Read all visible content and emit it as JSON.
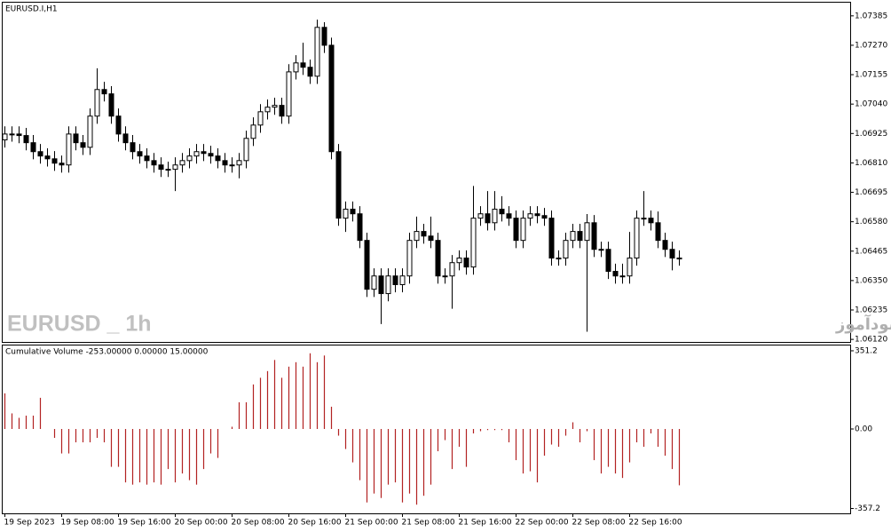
{
  "chart_data": [
    {
      "type": "candlestick",
      "title": "EURUSD.I,H1",
      "annotations": [
        "EURUSD _ 1h",
        "انتشار در سایت سودآموز"
      ],
      "categories": [
        "19 Sep 2023",
        null,
        null,
        null,
        null,
        null,
        null,
        null,
        "19 Sep 08:00",
        null,
        null,
        null,
        null,
        null,
        null,
        null,
        "19 Sep 16:00",
        null,
        null,
        null,
        null,
        null,
        null,
        null,
        "20 Sep 00:00",
        null,
        null,
        null,
        null,
        null,
        null,
        null,
        "20 Sep 08:00",
        null,
        null,
        null,
        null,
        null,
        null,
        null,
        "20 Sep 16:00",
        null,
        null,
        null,
        null,
        null,
        null,
        null,
        "21 Sep 00:00",
        null,
        null,
        null,
        null,
        null,
        null,
        null,
        "21 Sep 08:00",
        null,
        null,
        null,
        null,
        null,
        null,
        null,
        "21 Sep 16:00",
        null,
        null,
        null,
        null,
        null,
        null,
        null,
        "22 Sep 00:00",
        null,
        null,
        null,
        null,
        null,
        null,
        null,
        "22 Sep 08:00",
        null,
        null,
        null,
        null,
        null,
        null,
        null,
        "22 Sep 16:00",
        null,
        null,
        null,
        null,
        null,
        null,
        null
      ],
      "open": [
        1.069,
        1.06923,
        1.06923,
        1.06917,
        1.06889,
        1.06854,
        1.06837,
        1.06826,
        1.06809,
        1.06802,
        1.06923,
        1.06889,
        1.06871,
        1.06993,
        1.07097,
        1.0708,
        1.06993,
        1.06923,
        1.06889,
        1.06854,
        1.06837,
        1.06819,
        1.06802,
        1.06785,
        1.06785,
        1.06802,
        1.06819,
        1.06837,
        1.06854,
        1.06847,
        1.06837,
        1.06819,
        1.06802,
        1.06802,
        1.06819,
        1.06906,
        1.06958,
        1.0701,
        1.07028,
        1.07035,
        1.06993,
        1.07166,
        1.07201,
        1.07184,
        1.07149,
        1.0734,
        1.0727,
        1.06854,
        1.06594,
        1.06629,
        1.06611,
        1.06507,
        1.06316,
        1.06368,
        1.06299,
        1.06368,
        1.06334,
        1.06368,
        1.06507,
        1.06542,
        1.06524,
        1.06507,
        1.06368,
        1.06368,
        1.0642,
        1.06438,
        1.06403,
        1.06594,
        1.06611,
        1.06576,
        1.06629,
        1.06611,
        1.06594,
        1.06507,
        1.06594,
        1.06611,
        1.06604,
        1.06594,
        1.06438,
        1.06438,
        1.06507,
        1.06542,
        1.06507,
        1.06576,
        1.06472,
        1.06472,
        1.06386,
        1.06368,
        1.06368,
        1.06438,
        1.06594,
        1.06594,
        1.06576,
        1.06507,
        1.06472,
        1.06438
      ],
      "high": [
        1.06953,
        1.06953,
        1.06953,
        1.06947,
        1.06919,
        1.06884,
        1.06867,
        1.06856,
        1.06839,
        1.06953,
        1.06953,
        1.06919,
        1.07023,
        1.0718,
        1.07127,
        1.0711,
        1.07023,
        1.06953,
        1.06919,
        1.06884,
        1.06867,
        1.06849,
        1.06832,
        1.06815,
        1.06832,
        1.06849,
        1.06867,
        1.06884,
        1.06884,
        1.06877,
        1.06867,
        1.06849,
        1.06832,
        1.06849,
        1.06936,
        1.06988,
        1.0704,
        1.07058,
        1.07065,
        1.07065,
        1.07196,
        1.07231,
        1.0728,
        1.07214,
        1.0737,
        1.0736,
        1.073,
        1.06884,
        1.06659,
        1.06659,
        1.06641,
        1.06537,
        1.06398,
        1.06398,
        1.06398,
        1.06398,
        1.06398,
        1.06537,
        1.066,
        1.06572,
        1.066,
        1.06537,
        1.06398,
        1.0645,
        1.06468,
        1.06468,
        1.0672,
        1.06641,
        1.067,
        1.067,
        1.0668,
        1.06641,
        1.06624,
        1.06624,
        1.06641,
        1.06641,
        1.06634,
        1.06624,
        1.06468,
        1.06537,
        1.06572,
        1.06572,
        1.0661,
        1.06606,
        1.06502,
        1.06502,
        1.06416,
        1.06416,
        1.0654,
        1.06624,
        1.067,
        1.06624,
        1.0662,
        1.06537,
        1.06502,
        1.06468
      ],
      "low": [
        1.0687,
        1.06893,
        1.06887,
        1.06859,
        1.06824,
        1.06807,
        1.06796,
        1.06779,
        1.06772,
        1.06772,
        1.06859,
        1.06841,
        1.06841,
        1.06963,
        1.0705,
        1.06963,
        1.06893,
        1.06859,
        1.06824,
        1.06807,
        1.06789,
        1.06772,
        1.06755,
        1.06755,
        1.067,
        1.06772,
        1.06789,
        1.06807,
        1.06817,
        1.06807,
        1.06789,
        1.06772,
        1.06772,
        1.0675,
        1.06789,
        1.06876,
        1.06928,
        1.0698,
        1.06998,
        1.06963,
        1.06963,
        1.07136,
        1.07154,
        1.07119,
        1.07119,
        1.0724,
        1.06824,
        1.06564,
        1.0654,
        1.06581,
        1.06477,
        1.06286,
        1.06286,
        1.0618,
        1.06269,
        1.06304,
        1.06304,
        1.06338,
        1.06477,
        1.06494,
        1.06477,
        1.06338,
        1.06338,
        1.0624,
        1.0639,
        1.06373,
        1.06373,
        1.06564,
        1.06546,
        1.06546,
        1.06581,
        1.06564,
        1.06477,
        1.06477,
        1.06564,
        1.06574,
        1.06564,
        1.06408,
        1.06408,
        1.06408,
        1.06477,
        1.06477,
        1.0615,
        1.06442,
        1.06442,
        1.06356,
        1.06338,
        1.06338,
        1.06338,
        1.06408,
        1.06564,
        1.06546,
        1.06477,
        1.06442,
        1.0639,
        1.06408
      ],
      "close": [
        1.06923,
        1.06923,
        1.06917,
        1.06889,
        1.06854,
        1.06837,
        1.06826,
        1.06809,
        1.06802,
        1.06923,
        1.06889,
        1.06871,
        1.06993,
        1.07097,
        1.0708,
        1.06993,
        1.06923,
        1.06889,
        1.06854,
        1.06837,
        1.06819,
        1.06802,
        1.06785,
        1.06785,
        1.06802,
        1.06819,
        1.06837,
        1.06854,
        1.06847,
        1.06837,
        1.06819,
        1.06802,
        1.06802,
        1.06819,
        1.06906,
        1.06958,
        1.0701,
        1.07028,
        1.07035,
        1.06993,
        1.07166,
        1.07201,
        1.07184,
        1.07149,
        1.0734,
        1.0727,
        1.06854,
        1.06594,
        1.06629,
        1.06611,
        1.06507,
        1.06316,
        1.06368,
        1.06299,
        1.06368,
        1.06334,
        1.06368,
        1.06507,
        1.06542,
        1.06524,
        1.06507,
        1.06368,
        1.06368,
        1.0642,
        1.06438,
        1.06403,
        1.06594,
        1.06611,
        1.06576,
        1.06629,
        1.06611,
        1.06594,
        1.06507,
        1.06594,
        1.06611,
        1.06604,
        1.06594,
        1.06438,
        1.06438,
        1.06507,
        1.06542,
        1.06507,
        1.06576,
        1.06472,
        1.06472,
        1.06386,
        1.06368,
        1.06368,
        1.06438,
        1.06594,
        1.06594,
        1.06576,
        1.06507,
        1.06472,
        1.06438,
        1.06438
      ],
      "up_color": "#ffffff",
      "down_color": "#000000",
      "ylim": [
        1.0611,
        1.0744
      ],
      "yticks": [
        1.07385,
        {
          "value": 1.0727,
          "label": "1.07270"
        },
        1.07155,
        {
          "value": 1.0704,
          "label": "1.07040"
        },
        1.06925,
        {
          "value": 1.0681,
          "label": "1.06810"
        },
        1.06695,
        {
          "value": 1.0658,
          "label": "1.06580"
        },
        1.06465,
        {
          "value": 1.0635,
          "label": "1.06350"
        },
        1.06235,
        {
          "value": 1.0612,
          "label": "1.06120"
        }
      ]
    },
    {
      "type": "bar",
      "title": "Cumulative Volume -253.00000 0.00000 15.00000",
      "color": "#b22222",
      "values": [
        160,
        70,
        50,
        60,
        60,
        140,
        0,
        -40,
        -110,
        -110,
        -60,
        -60,
        -60,
        -40,
        -60,
        -170,
        -170,
        -240,
        -250,
        -240,
        -250,
        -240,
        -250,
        -180,
        -240,
        -200,
        -230,
        -250,
        -180,
        -110,
        -130,
        0,
        10,
        120,
        120,
        200,
        230,
        260,
        310,
        230,
        280,
        300,
        280,
        340,
        300,
        330,
        100,
        -30,
        -90,
        -150,
        -230,
        -330,
        -290,
        -310,
        -250,
        -240,
        -330,
        -290,
        -340,
        -300,
        -250,
        -100,
        -50,
        -180,
        -80,
        -170,
        -20,
        -10,
        -5,
        -5,
        -5,
        -60,
        -140,
        -200,
        -190,
        -240,
        -120,
        -70,
        -80,
        -30,
        30,
        -60,
        -10,
        -140,
        -200,
        -170,
        -200,
        -220,
        -150,
        -60,
        -80,
        -20,
        -80,
        -120,
        -180,
        -253
      ],
      "ylim": [
        -379,
        379
      ],
      "yticks": [
        351.2,
        {
          "value": 0,
          "label": "0.00"
        },
        -357.2
      ]
    }
  ]
}
